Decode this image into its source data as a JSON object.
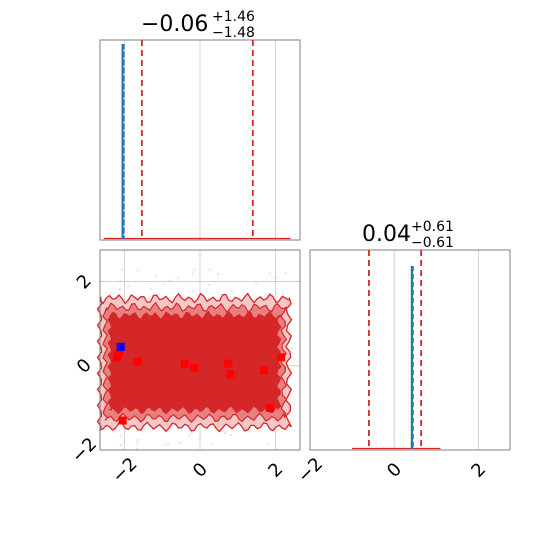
{
  "chart_data": {
    "type": "corner",
    "parameters": [
      {
        "name": "",
        "median": "−0.06",
        "upper": "+1.46",
        "lower": "−1.48",
        "quantiles": [
          -1.54,
          0.0,
          1.4
        ],
        "truth": -2.1,
        "hist_spike": {
          "x": -2.05,
          "height": 1.0
        }
      },
      {
        "name": "",
        "median": "0.04",
        "upper": "+0.61",
        "lower": "−0.61",
        "quantiles": [
          -0.6,
          0.0,
          0.64
        ],
        "truth": 0.42,
        "hist_spike": {
          "x": 0.42,
          "height": 1.0
        }
      }
    ],
    "axes": {
      "x0_range": [
        -2.65,
        2.65
      ],
      "x1_range": [
        -2.0,
        2.75
      ],
      "y1_range": [
        -2.0,
        2.75
      ],
      "ticks": [
        -2,
        0,
        2
      ],
      "tick_labels": [
        "−2",
        "0",
        "2"
      ]
    },
    "scatter_red": [
      [
        -2.2,
        0.2
      ],
      [
        -2.15,
        0.3
      ],
      [
        -2.05,
        -1.3
      ],
      [
        -1.65,
        0.1
      ],
      [
        -0.4,
        0.05
      ],
      [
        -0.15,
        -0.05
      ],
      [
        0.75,
        0.05
      ],
      [
        0.8,
        -0.2
      ],
      [
        1.7,
        -0.1
      ],
      [
        1.85,
        -1.0
      ],
      [
        2.15,
        0.2
      ]
    ],
    "scatter_blue": [
      [
        -2.1,
        0.45
      ]
    ],
    "contours": {
      "levels": 3,
      "x_extent": [
        -2.65,
        2.35
      ],
      "y_extent": [
        -1.45,
        1.6
      ]
    },
    "colors": {
      "accent_red": "#d62728",
      "contour_fill_outer": "#f4c8c8",
      "contour_fill_mid": "#e98080",
      "contour_fill_inner": "#d62728",
      "truth_blue": "#1f77b4",
      "grid": "#c8c8c8",
      "frame": "#7f7f7f"
    },
    "grid": true
  }
}
